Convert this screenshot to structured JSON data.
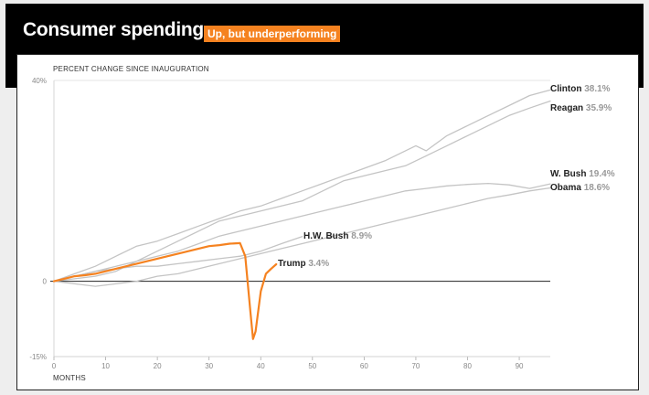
{
  "header": {
    "title": "Consumer spending",
    "badge": "Up, but underperforming",
    "background": "#000000",
    "badge_color": "#f58220"
  },
  "chart_data": {
    "type": "line",
    "title": "Consumer spending",
    "subtitle": "Up, but underperforming",
    "ylabel": "PERCENT CHANGE SINCE INAUGURATION",
    "xlabel": "MONTHS",
    "xlim": [
      0,
      96
    ],
    "ylim": [
      -15,
      40
    ],
    "y_ticks": [
      {
        "value": 40,
        "label": "40%"
      },
      {
        "value": 0,
        "label": "0"
      },
      {
        "value": -15,
        "label": "-15%"
      }
    ],
    "x_ticks": [
      0,
      10,
      20,
      30,
      40,
      50,
      60,
      70,
      80,
      90
    ],
    "series": [
      {
        "name": "Clinton",
        "final_label": "38.1%",
        "color": "#c4c4c4",
        "x": [
          0,
          4,
          8,
          12,
          16,
          20,
          24,
          28,
          32,
          36,
          40,
          44,
          48,
          52,
          56,
          60,
          64,
          68,
          70,
          72,
          76,
          80,
          84,
          88,
          92,
          96
        ],
        "y": [
          0,
          1.5,
          3,
          5,
          7,
          8,
          9.5,
          11,
          12.5,
          14,
          15,
          16.5,
          18,
          19.5,
          21,
          22.5,
          24,
          26,
          27,
          26,
          29,
          31,
          33,
          35,
          37,
          38.1
        ]
      },
      {
        "name": "Reagan",
        "final_label": "35.9%",
        "color": "#c4c4c4",
        "x": [
          0,
          4,
          8,
          12,
          16,
          20,
          24,
          28,
          32,
          36,
          40,
          44,
          48,
          52,
          56,
          60,
          64,
          68,
          72,
          76,
          80,
          84,
          88,
          92,
          96
        ],
        "y": [
          0,
          0.5,
          1,
          2,
          4,
          6,
          8,
          10,
          12,
          13,
          14,
          15,
          16,
          18,
          20,
          21,
          22,
          23,
          25,
          27,
          29,
          31,
          33,
          34.5,
          35.9
        ]
      },
      {
        "name": "W. Bush",
        "final_label": "19.4%",
        "color": "#c4c4c4",
        "x": [
          0,
          4,
          8,
          12,
          16,
          20,
          24,
          28,
          32,
          36,
          40,
          44,
          48,
          52,
          56,
          60,
          64,
          68,
          72,
          76,
          80,
          84,
          88,
          92,
          96
        ],
        "y": [
          0,
          1,
          2,
          3,
          4,
          5,
          6,
          7.5,
          9,
          10,
          11,
          12,
          13,
          14,
          15,
          16,
          17,
          18,
          18.5,
          19,
          19.3,
          19.5,
          19.2,
          18.5,
          19.4
        ]
      },
      {
        "name": "Obama",
        "final_label": "18.6%",
        "color": "#c4c4c4",
        "x": [
          0,
          4,
          8,
          12,
          16,
          20,
          24,
          28,
          32,
          36,
          40,
          44,
          48,
          52,
          56,
          60,
          64,
          68,
          72,
          76,
          80,
          84,
          88,
          92,
          96
        ],
        "y": [
          0,
          -0.5,
          -1,
          -0.5,
          0,
          1,
          1.5,
          2.5,
          3.5,
          4.5,
          5.5,
          6.5,
          7.5,
          8.5,
          9.5,
          10.5,
          11.5,
          12.5,
          13.5,
          14.5,
          15.5,
          16.5,
          17.2,
          18,
          18.6
        ]
      },
      {
        "name": "H.W. Bush",
        "final_label": "8.9%",
        "color": "#c4c4c4",
        "x": [
          0,
          4,
          8,
          12,
          16,
          20,
          24,
          28,
          32,
          36,
          40,
          44,
          48
        ],
        "y": [
          0,
          1,
          2,
          2.5,
          3,
          3,
          3.5,
          4,
          4.5,
          5,
          6,
          7.5,
          8.9
        ]
      },
      {
        "name": "Trump",
        "final_label": "3.4%",
        "color": "#f58220",
        "x": [
          0,
          2,
          4,
          6,
          8,
          10,
          12,
          14,
          16,
          18,
          20,
          22,
          24,
          26,
          28,
          30,
          32,
          34,
          36,
          37,
          38,
          38.5,
          39,
          40,
          41,
          42,
          43
        ],
        "y": [
          0,
          0.5,
          1,
          1.2,
          1.5,
          2,
          2.5,
          3,
          3.5,
          4,
          4.5,
          5,
          5.5,
          6,
          6.5,
          7,
          7.2,
          7.5,
          7.6,
          5,
          -6,
          -11.5,
          -10,
          -2,
          1.5,
          2.5,
          3.4
        ]
      }
    ]
  }
}
